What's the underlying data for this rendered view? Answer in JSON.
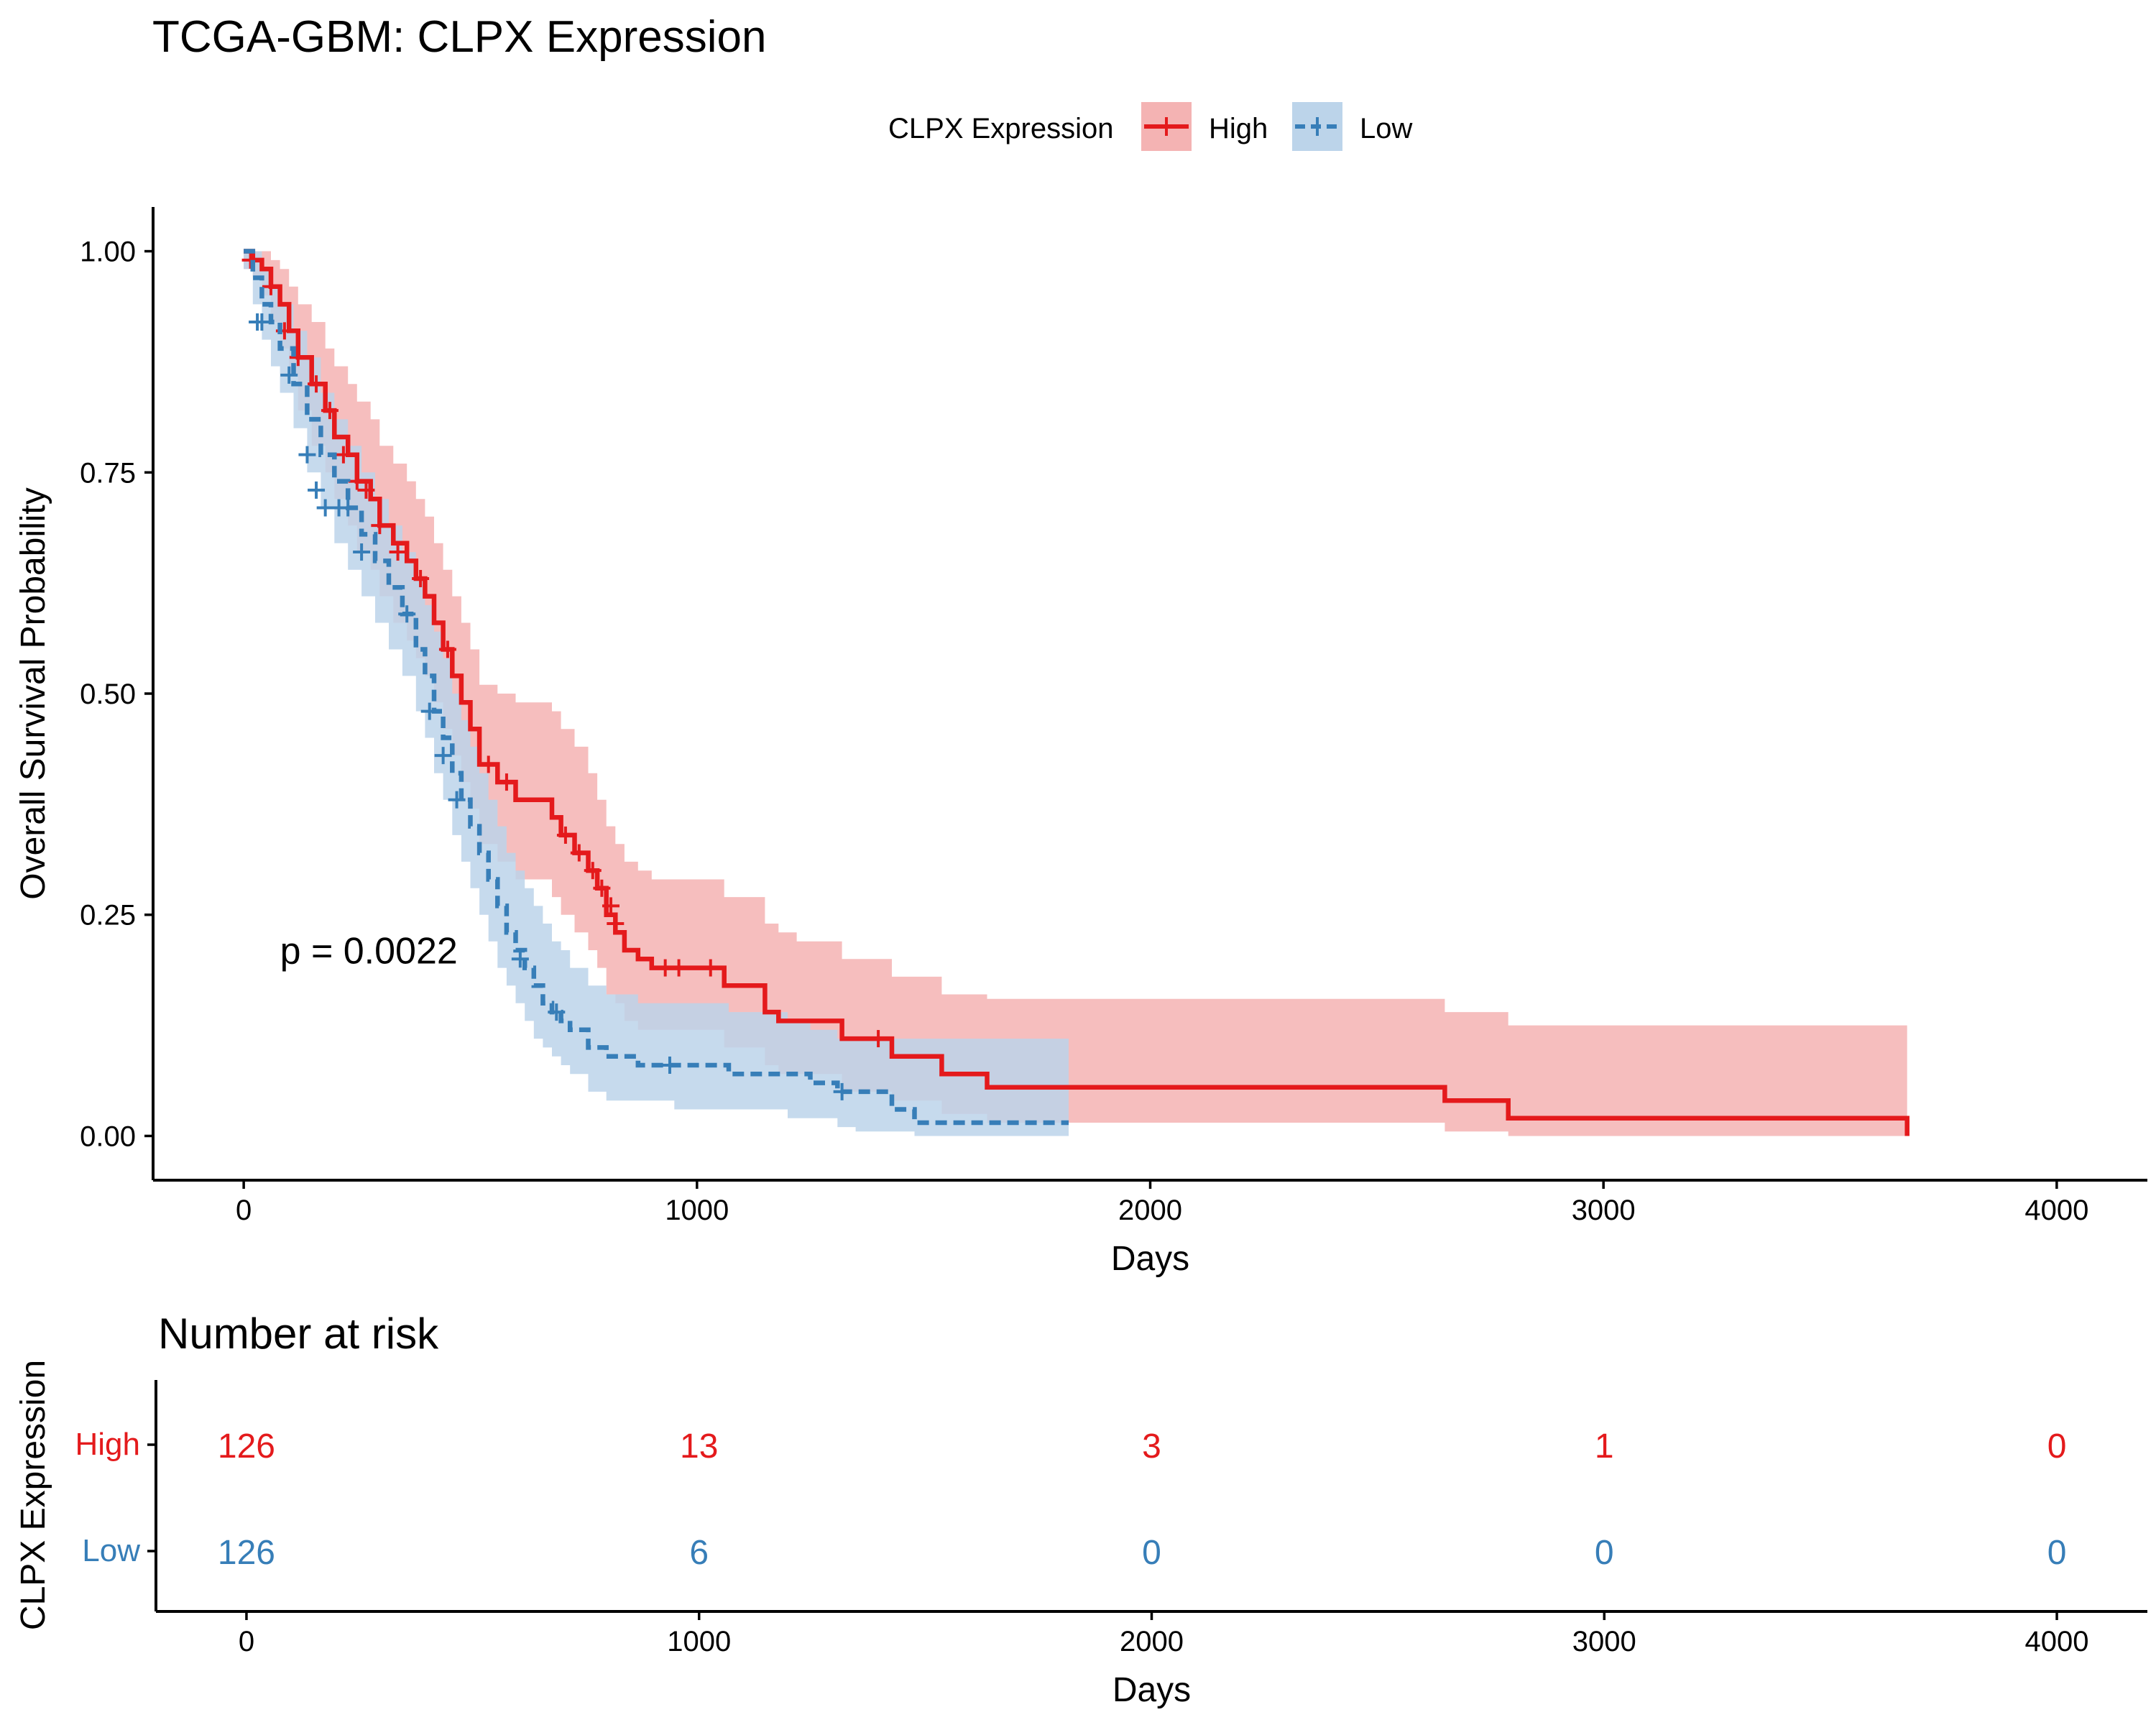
{
  "title": "TCGA-GBM: CLPX Expression",
  "legend": {
    "title": "CLPX Expression",
    "placement": "top",
    "items": [
      {
        "label": "High",
        "color": "#e41a1c",
        "fill": "#f4b3b3"
      },
      {
        "label": "Low",
        "color": "#377eb8",
        "fill": "#bcd4ea"
      }
    ]
  },
  "chart_data": {
    "type": "line",
    "subtype": "kaplan-meier",
    "xlabel": "Days",
    "ylabel": "Overall Survival Probability",
    "xlim": [
      -200,
      4200
    ],
    "ylim": [
      -0.05,
      1.05
    ],
    "xticks": [
      0,
      1000,
      2000,
      3000,
      4000
    ],
    "xtick_labels": [
      "0",
      "1000",
      "2000",
      "3000",
      "4000"
    ],
    "yticks": [
      0,
      0.25,
      0.5,
      0.75,
      1.0
    ],
    "ytick_labels": [
      "0.00",
      "0.25",
      "0.50",
      "0.75",
      "1.00"
    ],
    "grid": false,
    "annotation": "p = 0.0022",
    "annotation_pos": {
      "x": 80,
      "y": 0.195
    },
    "series": [
      {
        "name": "High",
        "color": "#e41a1c",
        "dash": false,
        "step_x": [
          0,
          20,
          40,
          60,
          80,
          100,
          120,
          150,
          180,
          200,
          230,
          250,
          280,
          300,
          330,
          360,
          380,
          400,
          420,
          440,
          460,
          480,
          500,
          520,
          560,
          600,
          680,
          700,
          730,
          760,
          780,
          800,
          820,
          840,
          870,
          900,
          950,
          1000,
          1060,
          1150,
          1180,
          1220,
          1320,
          1400,
          1430,
          1540,
          1640,
          2650,
          2790,
          3670
        ],
        "step_y": [
          1.0,
          0.99,
          0.98,
          0.96,
          0.94,
          0.91,
          0.88,
          0.85,
          0.82,
          0.79,
          0.77,
          0.74,
          0.72,
          0.69,
          0.67,
          0.65,
          0.63,
          0.61,
          0.58,
          0.55,
          0.52,
          0.49,
          0.46,
          0.42,
          0.4,
          0.38,
          0.36,
          0.34,
          0.32,
          0.3,
          0.28,
          0.25,
          0.23,
          0.21,
          0.2,
          0.19,
          0.19,
          0.19,
          0.17,
          0.14,
          0.13,
          0.13,
          0.11,
          0.11,
          0.09,
          0.07,
          0.055,
          0.04,
          0.02,
          0.02
        ],
        "end_x": 3670,
        "end_y": 0.0,
        "ci_upper": [
          1.0,
          1.0,
          1.0,
          0.99,
          0.98,
          0.96,
          0.94,
          0.92,
          0.89,
          0.87,
          0.85,
          0.83,
          0.81,
          0.78,
          0.76,
          0.74,
          0.72,
          0.7,
          0.67,
          0.64,
          0.61,
          0.58,
          0.55,
          0.51,
          0.5,
          0.49,
          0.48,
          0.46,
          0.44,
          0.41,
          0.38,
          0.35,
          0.33,
          0.31,
          0.3,
          0.29,
          0.29,
          0.29,
          0.27,
          0.24,
          0.23,
          0.22,
          0.2,
          0.2,
          0.18,
          0.16,
          0.155,
          0.14,
          0.125,
          0.125
        ],
        "ci_lower": [
          0.98,
          0.97,
          0.95,
          0.92,
          0.89,
          0.86,
          0.82,
          0.78,
          0.75,
          0.72,
          0.69,
          0.66,
          0.64,
          0.61,
          0.58,
          0.56,
          0.54,
          0.52,
          0.49,
          0.46,
          0.43,
          0.4,
          0.37,
          0.33,
          0.31,
          0.29,
          0.27,
          0.25,
          0.23,
          0.21,
          0.19,
          0.16,
          0.15,
          0.13,
          0.12,
          0.12,
          0.12,
          0.12,
          0.1,
          0.08,
          0.07,
          0.07,
          0.05,
          0.05,
          0.04,
          0.025,
          0.015,
          0.005,
          0.0,
          0.0
        ],
        "censor_x": [
          15,
          60,
          90,
          120,
          160,
          190,
          220,
          250,
          270,
          300,
          340,
          390,
          450,
          540,
          580,
          710,
          740,
          770,
          790,
          810,
          820,
          930,
          960,
          1030,
          1400
        ],
        "censor_y": [
          0.99,
          0.96,
          0.91,
          0.88,
          0.85,
          0.82,
          0.77,
          0.74,
          0.73,
          0.69,
          0.66,
          0.63,
          0.55,
          0.42,
          0.4,
          0.34,
          0.32,
          0.3,
          0.28,
          0.26,
          0.24,
          0.19,
          0.19,
          0.19,
          0.11
        ]
      },
      {
        "name": "Low",
        "color": "#377eb8",
        "dash": true,
        "step_x": [
          0,
          20,
          40,
          60,
          80,
          110,
          140,
          170,
          200,
          230,
          260,
          290,
          320,
          350,
          380,
          400,
          420,
          440,
          460,
          480,
          500,
          520,
          540,
          560,
          580,
          600,
          620,
          640,
          660,
          680,
          700,
          720,
          760,
          800,
          870,
          950,
          1070,
          1200,
          1250,
          1310,
          1350,
          1430,
          1480,
          1820
        ],
        "step_y": [
          1.0,
          0.97,
          0.94,
          0.92,
          0.89,
          0.85,
          0.81,
          0.77,
          0.74,
          0.71,
          0.68,
          0.65,
          0.62,
          0.59,
          0.55,
          0.52,
          0.48,
          0.45,
          0.41,
          0.38,
          0.35,
          0.32,
          0.29,
          0.26,
          0.23,
          0.21,
          0.19,
          0.17,
          0.15,
          0.14,
          0.13,
          0.12,
          0.1,
          0.09,
          0.08,
          0.08,
          0.07,
          0.07,
          0.06,
          0.05,
          0.05,
          0.03,
          0.015,
          0.015
        ],
        "ci_upper": [
          1.0,
          1.0,
          0.98,
          0.96,
          0.94,
          0.91,
          0.88,
          0.84,
          0.81,
          0.78,
          0.75,
          0.72,
          0.69,
          0.66,
          0.63,
          0.6,
          0.57,
          0.54,
          0.5,
          0.47,
          0.44,
          0.41,
          0.38,
          0.35,
          0.32,
          0.3,
          0.28,
          0.26,
          0.24,
          0.22,
          0.21,
          0.19,
          0.17,
          0.16,
          0.15,
          0.15,
          0.14,
          0.13,
          0.12,
          0.11,
          0.11,
          0.11,
          0.11,
          0.11
        ],
        "ci_lower": [
          0.98,
          0.94,
          0.9,
          0.87,
          0.84,
          0.8,
          0.75,
          0.71,
          0.67,
          0.64,
          0.61,
          0.58,
          0.55,
          0.52,
          0.48,
          0.45,
          0.41,
          0.38,
          0.34,
          0.31,
          0.28,
          0.25,
          0.22,
          0.19,
          0.17,
          0.15,
          0.13,
          0.11,
          0.1,
          0.09,
          0.08,
          0.07,
          0.05,
          0.04,
          0.04,
          0.03,
          0.03,
          0.02,
          0.02,
          0.01,
          0.005,
          0.005,
          0.0,
          0.0
        ],
        "censor_x": [
          30,
          40,
          100,
          140,
          160,
          180,
          210,
          230,
          260,
          360,
          410,
          440,
          470,
          610,
          690,
          940,
          1320
        ],
        "censor_y": [
          0.92,
          0.92,
          0.86,
          0.77,
          0.73,
          0.71,
          0.71,
          0.71,
          0.66,
          0.59,
          0.48,
          0.43,
          0.38,
          0.2,
          0.14,
          0.08,
          0.05
        ]
      }
    ]
  },
  "risk_table": {
    "title": "Number at risk",
    "ylabel": "CLPX Expression",
    "xlabel": "Days",
    "xticks": [
      0,
      1000,
      2000,
      3000,
      4000
    ],
    "xtick_labels": [
      "0",
      "1000",
      "2000",
      "3000",
      "4000"
    ],
    "rows": [
      {
        "label": "High",
        "color": "#e41a1c",
        "values": [
          "126",
          "13",
          "3",
          "1",
          "0"
        ]
      },
      {
        "label": "Low",
        "color": "#377eb8",
        "values": [
          "126",
          "6",
          "0",
          "0",
          "0"
        ]
      }
    ]
  }
}
